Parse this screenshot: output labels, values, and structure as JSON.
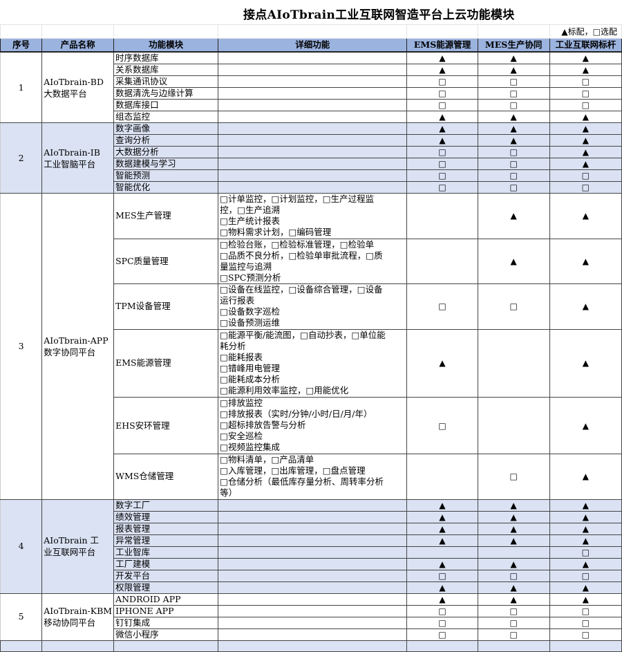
{
  "title": "接点AIoTbrain工业互联网智造平台上云功能模块",
  "legend": "▲标配，□选配",
  "headers": [
    "序号",
    "产品名称",
    "功能模块",
    "详细功能",
    "EMS能源管理",
    "MES生产协同",
    "工业互联网标杆"
  ],
  "sections": [
    {
      "no": "1",
      "name": [
        "AIoTbrain-BD",
        "大数据平台"
      ],
      "alt": false,
      "rows": [
        {
          "module": "时序数据库",
          "detail": [],
          "marks": [
            "▲",
            "▲",
            "▲"
          ]
        },
        {
          "module": "关系数据库",
          "detail": [],
          "marks": [
            "▲",
            "▲",
            "▲"
          ]
        },
        {
          "module": "采集通讯协议",
          "detail": [],
          "marks": [
            "□",
            "□",
            "□"
          ]
        },
        {
          "module": "数据清洗与边缘计算",
          "detail": [],
          "marks": [
            "□",
            "□",
            "□"
          ]
        },
        {
          "module": "数据库接口",
          "detail": [],
          "marks": [
            "□",
            "□",
            "□"
          ]
        },
        {
          "module": "组态监控",
          "detail": [],
          "marks": [
            "▲",
            "▲",
            "▲"
          ]
        }
      ]
    },
    {
      "no": "2",
      "name": [
        "AIoTbrain-IB",
        "工业智脑平台"
      ],
      "alt": true,
      "rows": [
        {
          "module": "数字画像",
          "detail": [],
          "marks": [
            "▲",
            "▲",
            "▲"
          ]
        },
        {
          "module": "查询分析",
          "detail": [],
          "marks": [
            "▲",
            "▲",
            "▲"
          ]
        },
        {
          "module": "大数据分析",
          "detail": [],
          "marks": [
            "□",
            "□",
            "▲"
          ]
        },
        {
          "module": "数据建模与学习",
          "detail": [],
          "marks": [
            "□",
            "□",
            "▲"
          ]
        },
        {
          "module": "智能预测",
          "detail": [],
          "marks": [
            "□",
            "□",
            "□"
          ]
        },
        {
          "module": "智能优化",
          "detail": [],
          "marks": [
            "□",
            "□",
            "□"
          ]
        }
      ]
    },
    {
      "no": "3",
      "name": [
        "AIoTbrain-APP",
        "数字协同平台"
      ],
      "alt": false,
      "rows": [
        {
          "module": "MES生产管理",
          "detail": [
            "□计单监控，□计划监控，□生产过程监",
            "控，□生产追溯",
            "□生产统计报表",
            "□物料需求计划，□编码管理"
          ],
          "marks": [
            "",
            "▲",
            "▲"
          ]
        },
        {
          "module": "SPC质量管理",
          "detail": [
            "□检验台账，□检验标准管理，□检验单",
            "□品质不良分析，□检验单审批流程，□质",
            "量监控与追溯",
            "□SPC预测分析"
          ],
          "marks": [
            "",
            "▲",
            "▲"
          ]
        },
        {
          "module": "TPM设备管理",
          "detail": [
            "□设备在线监控，□设备综合管理，□设备",
            "运行报表",
            "□设备数字巡检",
            "□设备预测运维"
          ],
          "marks": [
            "□",
            "□",
            "▲"
          ]
        },
        {
          "module": "EMS能源管理",
          "detail": [
            "□能源平衡/能流图，□自动抄表，□单位能",
            "耗分析",
            "□能耗报表",
            "□错峰用电管理",
            "□能耗成本分析",
            "□能源利用效率监控，□用能优化"
          ],
          "marks": [
            "▲",
            "",
            "▲"
          ]
        },
        {
          "module": "EHS安环管理",
          "detail": [
            "□排放监控",
            "□排放报表（实时/分钟/小时/日/月/年）",
            "□超标排放告警与分析",
            "□安全巡检",
            "□视频监控集成"
          ],
          "marks": [
            "□",
            "",
            "▲"
          ]
        },
        {
          "module": "WMS仓储管理",
          "detail": [
            "□物料清单，□产品清单",
            "□入库管理，□出库管理，□盘点管理",
            "□仓储分析（最低库存量分析、周转率分析",
            "等）"
          ],
          "marks": [
            "",
            "□",
            "▲"
          ]
        }
      ]
    },
    {
      "no": "4",
      "name": [
        "AIoTbrain 工",
        "业互联网平台"
      ],
      "alt": true,
      "rows": [
        {
          "module": "数字工厂",
          "detail": [],
          "marks": [
            "▲",
            "▲",
            "▲"
          ]
        },
        {
          "module": "绩效管理",
          "detail": [],
          "marks": [
            "▲",
            "▲",
            "▲"
          ]
        },
        {
          "module": "报表管理",
          "detail": [],
          "marks": [
            "▲",
            "▲",
            "▲"
          ]
        },
        {
          "module": "异常管理",
          "detail": [],
          "marks": [
            "▲",
            "▲",
            "▲"
          ]
        },
        {
          "module": "工业智库",
          "detail": [],
          "marks": [
            "",
            "",
            "□"
          ]
        },
        {
          "module": "工厂建模",
          "detail": [],
          "marks": [
            "▲",
            "▲",
            "▲"
          ]
        },
        {
          "module": "开发平台",
          "detail": [],
          "marks": [
            "□",
            "□",
            "□"
          ]
        },
        {
          "module": "权限管理",
          "detail": [],
          "marks": [
            "▲",
            "▲",
            "▲"
          ]
        }
      ]
    },
    {
      "no": "5",
      "name": [
        "AIoTbrain-KBM",
        "移动协同平台"
      ],
      "alt": false,
      "rows": [
        {
          "module": "ANDROID APP",
          "detail": [],
          "marks": [
            "▲",
            "▲",
            "▲"
          ]
        },
        {
          "module": "IPHONE APP",
          "detail": [],
          "marks": [
            "□",
            "□",
            "□"
          ]
        },
        {
          "module": "钉钉集成",
          "detail": [],
          "marks": [
            "□",
            "□",
            "□"
          ]
        },
        {
          "module": "微信小程序",
          "detail": [],
          "marks": [
            "□",
            "□",
            "□"
          ]
        }
      ]
    }
  ]
}
